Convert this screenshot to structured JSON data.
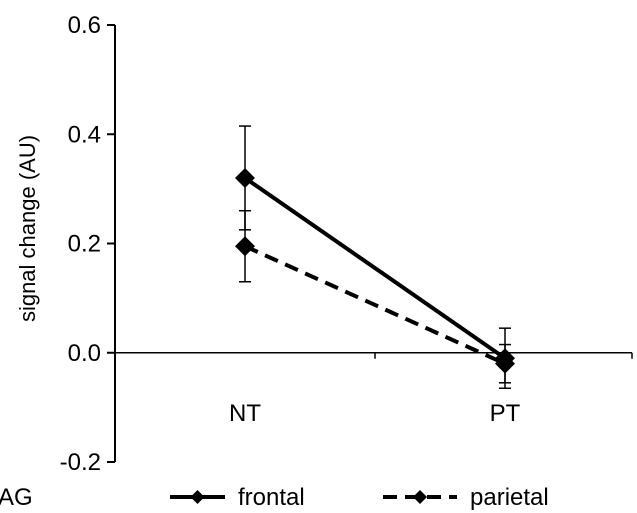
{
  "chart_data": {
    "type": "line",
    "categories": [
      "NT",
      "PT"
    ],
    "series": [
      {
        "name": "frontal",
        "values": [
          0.32,
          -0.01
        ],
        "errors": [
          0.095,
          0.055
        ],
        "line_style": "solid"
      },
      {
        "name": "parietal",
        "values": [
          0.195,
          -0.02
        ],
        "errors": [
          0.065,
          0.035
        ],
        "line_style": "dashed"
      }
    ],
    "title": "",
    "xlabel": "",
    "ylabel": "signal change (AU)",
    "ylim": [
      -0.2,
      0.6
    ],
    "yticks": [
      "-0.2",
      "0.0",
      "0.2",
      "0.4",
      "0.6"
    ],
    "grid": false,
    "legend_placement": "bottom",
    "legend_fragment": "AG",
    "colors": {
      "series": "#000000",
      "axis": "#000000",
      "background": "#ffffff"
    }
  }
}
